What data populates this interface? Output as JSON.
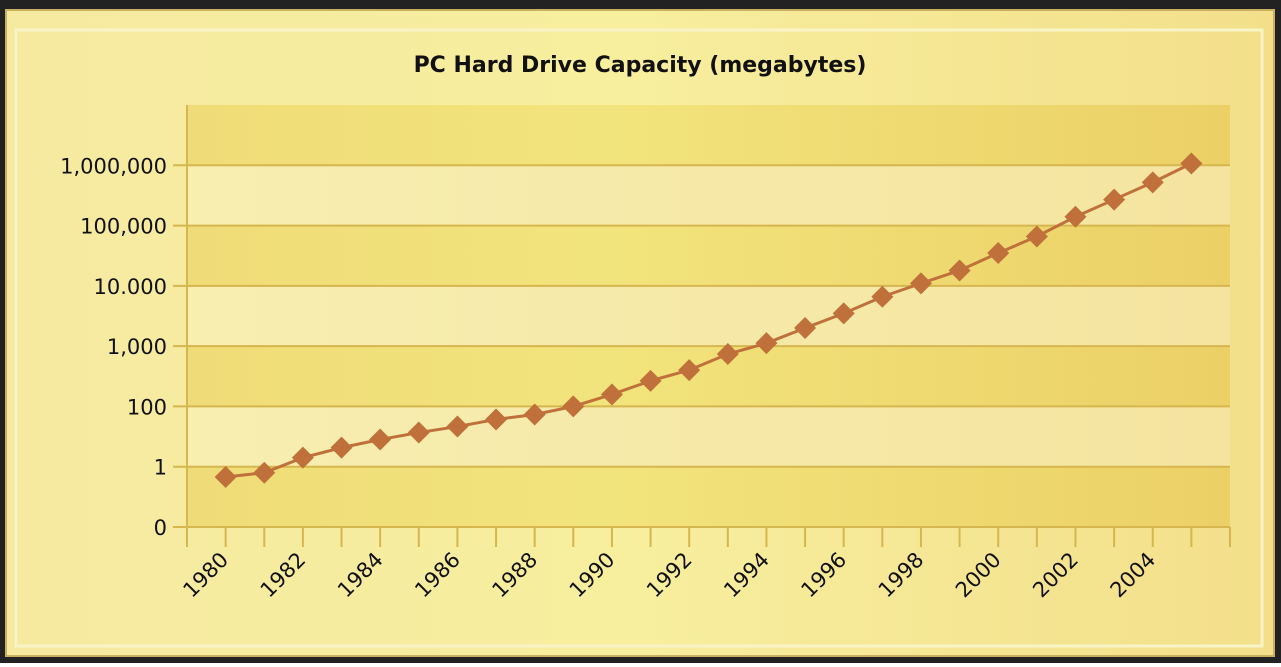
{
  "chart_data": {
    "type": "line",
    "title": "PC Hard Drive Capacity (megabytes)",
    "categories": [
      "1980",
      null,
      "1982",
      null,
      "1984",
      null,
      "1986",
      null,
      "1988",
      null,
      "1990",
      null,
      "1992",
      null,
      "1994",
      null,
      "1996",
      null,
      "1998",
      null,
      "2000",
      null,
      "2002",
      null,
      "2004",
      null
    ],
    "series": [
      {
        "name": "PC Hard Drive Capacity",
        "color": "#c0703a",
        "values": [
          0.83,
          0.9,
          2,
          4.3,
          8,
          13.6,
          21.5,
          37,
          54,
          100,
          158,
          266,
          400,
          740,
          1120,
          2000,
          3500,
          6600,
          11000,
          18000,
          35000,
          66000,
          140000,
          270000,
          520000,
          1070000
        ]
      }
    ],
    "ylim": [
      0,
      10000000
    ],
    "yticks": [
      0,
      1,
      100,
      {
        "value": 1000,
        "label": "1,000"
      },
      {
        "value": 10000,
        "label": "10.000"
      },
      {
        "value": 100000,
        "label": "100,000"
      },
      {
        "value": 1000000,
        "label": "1,000,000"
      }
    ],
    "grid": true
  }
}
